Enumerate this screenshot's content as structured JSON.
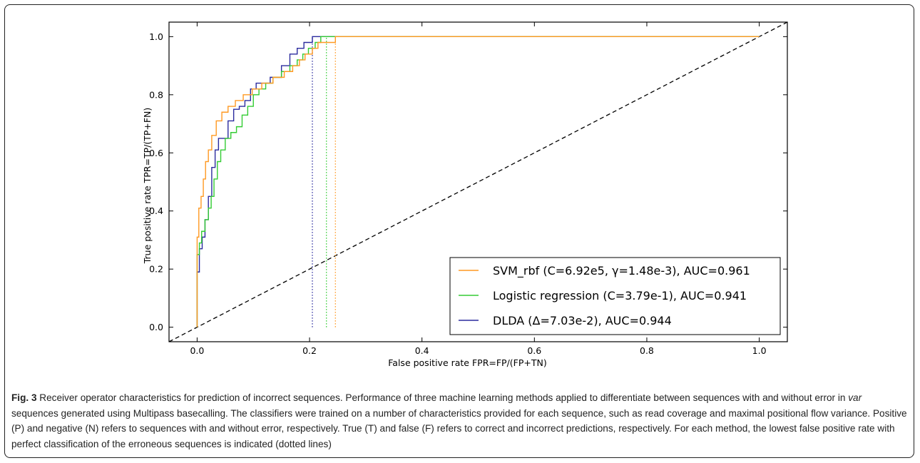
{
  "chart_data": {
    "type": "line",
    "xlabel": "False positive rate  FPR=FP/(FP+TN)",
    "ylabel": "True positive rate  TPR=TP/(TP+FN)",
    "xlim": [
      -0.05,
      1.05
    ],
    "ylim": [
      -0.05,
      1.05
    ],
    "x_ticks": [
      "0.0",
      "0.2",
      "0.4",
      "0.6",
      "0.8",
      "1.0"
    ],
    "y_ticks": [
      "0.0",
      "0.2",
      "0.4",
      "0.6",
      "0.8",
      "1.0"
    ],
    "grid": false,
    "legend_position": "lower-right",
    "series": [
      {
        "name": "SVM_rbf (C=6.92e5, γ=1.48e-3), AUC=0.961",
        "color": "#ff9922",
        "threshold_fpr": 0.246,
        "x": [
          0,
          0,
          0.003,
          0.003,
          0.007,
          0.007,
          0.011,
          0.011,
          0.015,
          0.015,
          0.02,
          0.02,
          0.026,
          0.026,
          0.034,
          0.034,
          0.044,
          0.044,
          0.055,
          0.055,
          0.068,
          0.068,
          0.082,
          0.082,
          0.098,
          0.098,
          0.115,
          0.115,
          0.135,
          0.135,
          0.155,
          0.155,
          0.17,
          0.17,
          0.182,
          0.182,
          0.192,
          0.192,
          0.205,
          0.205,
          0.215,
          0.215,
          0.232,
          0.232,
          0.246,
          0.246,
          1.0
        ],
        "y": [
          0,
          0.31,
          0.31,
          0.41,
          0.41,
          0.45,
          0.45,
          0.51,
          0.51,
          0.57,
          0.57,
          0.61,
          0.61,
          0.66,
          0.66,
          0.71,
          0.71,
          0.74,
          0.74,
          0.76,
          0.76,
          0.78,
          0.78,
          0.8,
          0.8,
          0.82,
          0.82,
          0.84,
          0.84,
          0.86,
          0.86,
          0.88,
          0.88,
          0.9,
          0.9,
          0.92,
          0.92,
          0.94,
          0.94,
          0.96,
          0.96,
          0.98,
          0.98,
          0.98,
          0.98,
          1.0,
          1.0
        ]
      },
      {
        "name": "Logistic regression (C=3.79e-1), AUC=0.941",
        "color": "#33cc33",
        "threshold_fpr": 0.23,
        "x": [
          0,
          0,
          0.004,
          0.004,
          0.008,
          0.008,
          0.014,
          0.014,
          0.02,
          0.02,
          0.025,
          0.025,
          0.03,
          0.03,
          0.036,
          0.036,
          0.042,
          0.042,
          0.05,
          0.05,
          0.06,
          0.06,
          0.07,
          0.07,
          0.08,
          0.08,
          0.09,
          0.09,
          0.1,
          0.1,
          0.11,
          0.11,
          0.122,
          0.122,
          0.135,
          0.135,
          0.15,
          0.15,
          0.165,
          0.165,
          0.178,
          0.178,
          0.188,
          0.188,
          0.198,
          0.198,
          0.21,
          0.21,
          0.22,
          0.22,
          0.23,
          0.23,
          1.0
        ],
        "y": [
          0,
          0.25,
          0.25,
          0.29,
          0.29,
          0.33,
          0.33,
          0.37,
          0.37,
          0.41,
          0.41,
          0.45,
          0.45,
          0.51,
          0.51,
          0.57,
          0.57,
          0.61,
          0.61,
          0.65,
          0.65,
          0.67,
          0.67,
          0.69,
          0.69,
          0.73,
          0.73,
          0.76,
          0.76,
          0.8,
          0.8,
          0.82,
          0.82,
          0.84,
          0.84,
          0.86,
          0.86,
          0.88,
          0.88,
          0.9,
          0.9,
          0.92,
          0.92,
          0.94,
          0.94,
          0.96,
          0.96,
          0.98,
          0.98,
          1.0,
          1.0,
          1.0,
          1.0
        ]
      },
      {
        "name": "DLDA (Δ=7.03e-2), AUC=0.944",
        "color": "#2b2b9e",
        "threshold_fpr": 0.205,
        "x": [
          0,
          0,
          0.004,
          0.004,
          0.009,
          0.009,
          0.014,
          0.014,
          0.02,
          0.02,
          0.026,
          0.026,
          0.032,
          0.032,
          0.038,
          0.038,
          0.045,
          0.045,
          0.055,
          0.055,
          0.065,
          0.065,
          0.075,
          0.075,
          0.085,
          0.085,
          0.095,
          0.095,
          0.105,
          0.105,
          0.115,
          0.115,
          0.13,
          0.13,
          0.15,
          0.15,
          0.165,
          0.165,
          0.178,
          0.178,
          0.19,
          0.19,
          0.205,
          0.205,
          1.0
        ],
        "y": [
          0,
          0.19,
          0.19,
          0.27,
          0.27,
          0.31,
          0.31,
          0.37,
          0.37,
          0.45,
          0.45,
          0.55,
          0.55,
          0.61,
          0.61,
          0.65,
          0.65,
          0.65,
          0.65,
          0.71,
          0.71,
          0.75,
          0.75,
          0.76,
          0.76,
          0.78,
          0.78,
          0.82,
          0.82,
          0.84,
          0.84,
          0.84,
          0.84,
          0.86,
          0.86,
          0.9,
          0.9,
          0.94,
          0.94,
          0.96,
          0.96,
          0.98,
          0.98,
          1.0,
          1.0
        ]
      }
    ],
    "reference_line": {
      "style": "dashed",
      "color": "#000000",
      "from": [
        -0.05,
        -0.05
      ],
      "to": [
        1.05,
        1.05
      ]
    }
  },
  "caption": {
    "label": "Fig. 3",
    "text_before_em": " Receiver operator characteristics for prediction of incorrect sequences. Performance of three machine learning methods applied to differentiate between sequences with and without error in ",
    "em": "var",
    "text_after_em": " sequences generated using Multipass basecalling. The classifiers were trained on a number of characteristics provided for each sequence, such as read coverage and maximal positional flow variance. Positive (P) and negative (N) refers to sequences with and without error, respectively. True (T) and false (F) refers to correct and incorrect predictions, respectively. For each method, the lowest false positive rate with perfect classification of the erroneous sequences is indicated (dotted lines)"
  }
}
